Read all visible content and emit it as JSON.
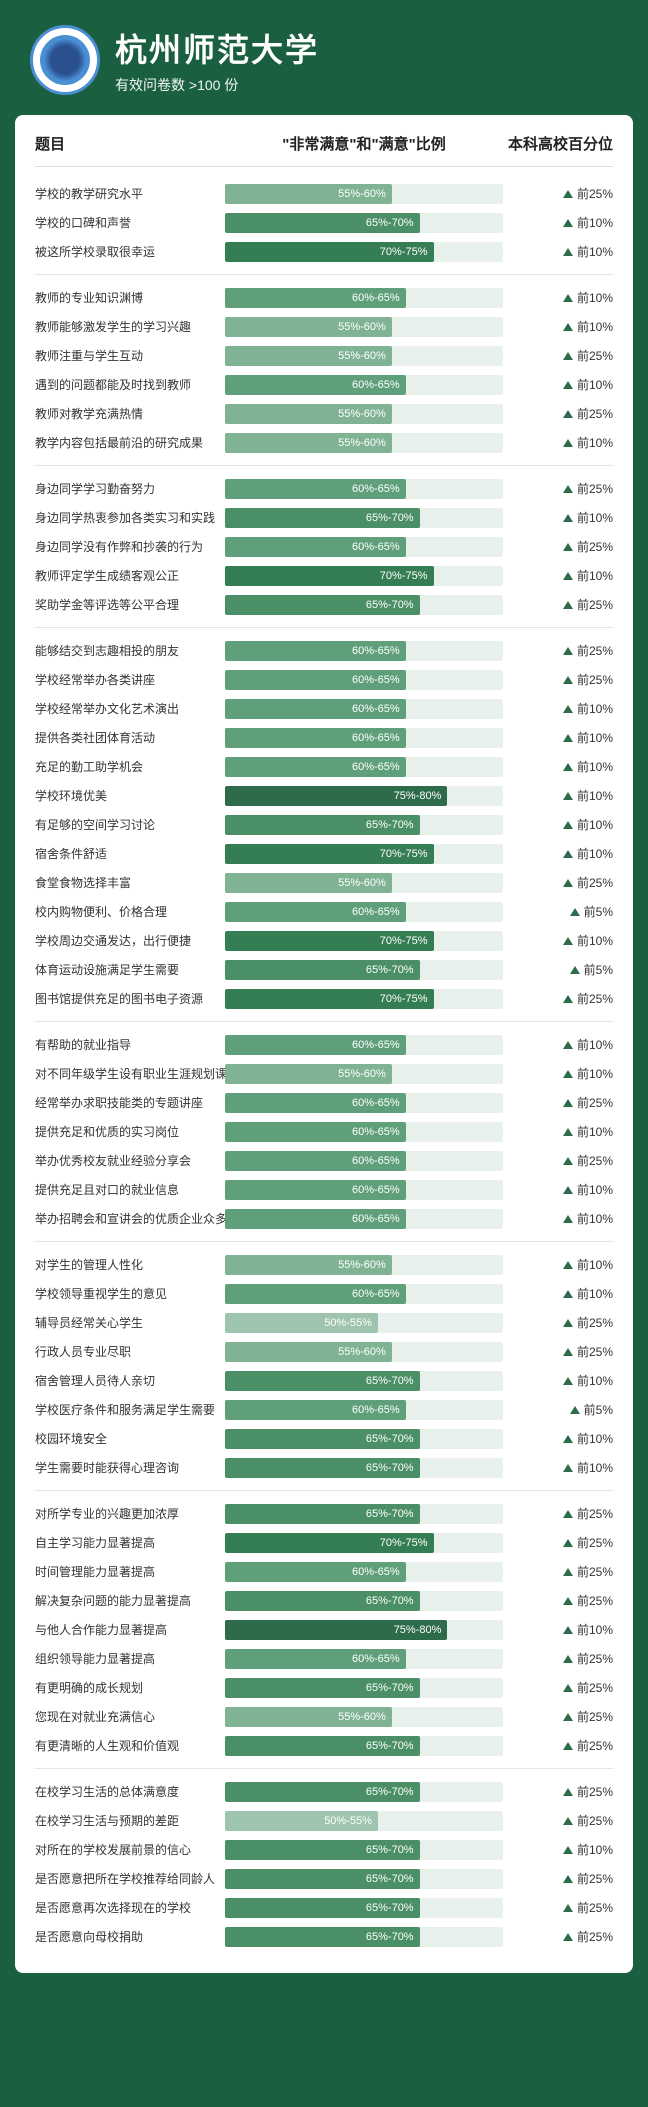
{
  "header": {
    "university": "杭州师范大学",
    "subtitle": "有效问卷数 >100 份"
  },
  "columns": {
    "question": "题目",
    "ratio": "\"非常满意\"和\"满意\"比例",
    "percentile": "本科高校百分位"
  },
  "style": {
    "page_bg": "#1a5f3f",
    "card_bg": "#ffffff",
    "bar_track": "#e8f0eb",
    "triangle": "#2d6b4a",
    "bar_colors": {
      "50-55": "#9fc4ae",
      "55-60": "#7fb394",
      "60-65": "#5fa07a",
      "65-70": "#4a8f65",
      "70-75": "#357d52",
      "75-80": "#2d6b4a"
    }
  },
  "groups": [
    [
      {
        "q": "学校的教学研究水平",
        "range": "55%-60%",
        "lo": 55,
        "hi": 60,
        "pct": "前25%"
      },
      {
        "q": "学校的口碑和声誉",
        "range": "65%-70%",
        "lo": 65,
        "hi": 70,
        "pct": "前10%"
      },
      {
        "q": "被这所学校录取很幸运",
        "range": "70%-75%",
        "lo": 70,
        "hi": 75,
        "pct": "前10%"
      }
    ],
    [
      {
        "q": "教师的专业知识渊博",
        "range": "60%-65%",
        "lo": 60,
        "hi": 65,
        "pct": "前10%"
      },
      {
        "q": "教师能够激发学生的学习兴趣",
        "range": "55%-60%",
        "lo": 55,
        "hi": 60,
        "pct": "前10%"
      },
      {
        "q": "教师注重与学生互动",
        "range": "55%-60%",
        "lo": 55,
        "hi": 60,
        "pct": "前25%"
      },
      {
        "q": "遇到的问题都能及时找到教师",
        "range": "60%-65%",
        "lo": 60,
        "hi": 65,
        "pct": "前10%"
      },
      {
        "q": "教师对教学充满热情",
        "range": "55%-60%",
        "lo": 55,
        "hi": 60,
        "pct": "前25%"
      },
      {
        "q": "教学内容包括最前沿的研究成果",
        "range": "55%-60%",
        "lo": 55,
        "hi": 60,
        "pct": "前10%"
      }
    ],
    [
      {
        "q": "身边同学学习勤奋努力",
        "range": "60%-65%",
        "lo": 60,
        "hi": 65,
        "pct": "前25%"
      },
      {
        "q": "身边同学热衷参加各类实习和实践",
        "range": "65%-70%",
        "lo": 65,
        "hi": 70,
        "pct": "前10%"
      },
      {
        "q": "身边同学没有作弊和抄袭的行为",
        "range": "60%-65%",
        "lo": 60,
        "hi": 65,
        "pct": "前25%"
      },
      {
        "q": "教师评定学生成绩客观公正",
        "range": "70%-75%",
        "lo": 70,
        "hi": 75,
        "pct": "前10%"
      },
      {
        "q": "奖助学金等评选等公平合理",
        "range": "65%-70%",
        "lo": 65,
        "hi": 70,
        "pct": "前25%"
      }
    ],
    [
      {
        "q": "能够结交到志趣相投的朋友",
        "range": "60%-65%",
        "lo": 60,
        "hi": 65,
        "pct": "前25%"
      },
      {
        "q": "学校经常举办各类讲座",
        "range": "60%-65%",
        "lo": 60,
        "hi": 65,
        "pct": "前25%"
      },
      {
        "q": "学校经常举办文化艺术演出",
        "range": "60%-65%",
        "lo": 60,
        "hi": 65,
        "pct": "前10%"
      },
      {
        "q": "提供各类社团体育活动",
        "range": "60%-65%",
        "lo": 60,
        "hi": 65,
        "pct": "前10%"
      },
      {
        "q": "充足的勤工助学机会",
        "range": "60%-65%",
        "lo": 60,
        "hi": 65,
        "pct": "前10%"
      },
      {
        "q": "学校环境优美",
        "range": "75%-80%",
        "lo": 75,
        "hi": 80,
        "pct": "前10%"
      },
      {
        "q": "有足够的空间学习讨论",
        "range": "65%-70%",
        "lo": 65,
        "hi": 70,
        "pct": "前10%"
      },
      {
        "q": "宿舍条件舒适",
        "range": "70%-75%",
        "lo": 70,
        "hi": 75,
        "pct": "前10%"
      },
      {
        "q": "食堂食物选择丰富",
        "range": "55%-60%",
        "lo": 55,
        "hi": 60,
        "pct": "前25%"
      },
      {
        "q": "校内购物便利、价格合理",
        "range": "60%-65%",
        "lo": 60,
        "hi": 65,
        "pct": "前5%"
      },
      {
        "q": "学校周边交通发达，出行便捷",
        "range": "70%-75%",
        "lo": 70,
        "hi": 75,
        "pct": "前10%"
      },
      {
        "q": "体育运动设施满足学生需要",
        "range": "65%-70%",
        "lo": 65,
        "hi": 70,
        "pct": "前5%"
      },
      {
        "q": "图书馆提供充足的图书电子资源",
        "range": "70%-75%",
        "lo": 70,
        "hi": 75,
        "pct": "前25%"
      }
    ],
    [
      {
        "q": "有帮助的就业指导",
        "range": "60%-65%",
        "lo": 60,
        "hi": 65,
        "pct": "前10%"
      },
      {
        "q": "对不同年级学生设有职业生涯规划课",
        "range": "55%-60%",
        "lo": 55,
        "hi": 60,
        "pct": "前10%"
      },
      {
        "q": "经常举办求职技能类的专题讲座",
        "range": "60%-65%",
        "lo": 60,
        "hi": 65,
        "pct": "前25%"
      },
      {
        "q": "提供充足和优质的实习岗位",
        "range": "60%-65%",
        "lo": 60,
        "hi": 65,
        "pct": "前10%"
      },
      {
        "q": "举办优秀校友就业经验分享会",
        "range": "60%-65%",
        "lo": 60,
        "hi": 65,
        "pct": "前25%"
      },
      {
        "q": "提供充足且对口的就业信息",
        "range": "60%-65%",
        "lo": 60,
        "hi": 65,
        "pct": "前10%"
      },
      {
        "q": "举办招聘会和宣讲会的优质企业众多",
        "range": "60%-65%",
        "lo": 60,
        "hi": 65,
        "pct": "前10%"
      }
    ],
    [
      {
        "q": "对学生的管理人性化",
        "range": "55%-60%",
        "lo": 55,
        "hi": 60,
        "pct": "前10%"
      },
      {
        "q": "学校领导重视学生的意见",
        "range": "60%-65%",
        "lo": 60,
        "hi": 65,
        "pct": "前10%"
      },
      {
        "q": "辅导员经常关心学生",
        "range": "50%-55%",
        "lo": 50,
        "hi": 55,
        "pct": "前25%"
      },
      {
        "q": "行政人员专业尽职",
        "range": "55%-60%",
        "lo": 55,
        "hi": 60,
        "pct": "前25%"
      },
      {
        "q": "宿舍管理人员待人亲切",
        "range": "65%-70%",
        "lo": 65,
        "hi": 70,
        "pct": "前10%"
      },
      {
        "q": "学校医疗条件和服务满足学生需要",
        "range": "60%-65%",
        "lo": 60,
        "hi": 65,
        "pct": "前5%"
      },
      {
        "q": "校园环境安全",
        "range": "65%-70%",
        "lo": 65,
        "hi": 70,
        "pct": "前10%"
      },
      {
        "q": "学生需要时能获得心理咨询",
        "range": "65%-70%",
        "lo": 65,
        "hi": 70,
        "pct": "前10%"
      }
    ],
    [
      {
        "q": "对所学专业的兴趣更加浓厚",
        "range": "65%-70%",
        "lo": 65,
        "hi": 70,
        "pct": "前25%"
      },
      {
        "q": "自主学习能力显著提高",
        "range": "70%-75%",
        "lo": 70,
        "hi": 75,
        "pct": "前25%"
      },
      {
        "q": "时间管理能力显著提高",
        "range": "60%-65%",
        "lo": 60,
        "hi": 65,
        "pct": "前25%"
      },
      {
        "q": "解决复杂问题的能力显著提高",
        "range": "65%-70%",
        "lo": 65,
        "hi": 70,
        "pct": "前25%"
      },
      {
        "q": "与他人合作能力显著提高",
        "range": "75%-80%",
        "lo": 75,
        "hi": 80,
        "pct": "前10%"
      },
      {
        "q": "组织领导能力显著提高",
        "range": "60%-65%",
        "lo": 60,
        "hi": 65,
        "pct": "前25%"
      },
      {
        "q": "有更明确的成长规划",
        "range": "65%-70%",
        "lo": 65,
        "hi": 70,
        "pct": "前25%"
      },
      {
        "q": "您现在对就业充满信心",
        "range": "55%-60%",
        "lo": 55,
        "hi": 60,
        "pct": "前25%"
      },
      {
        "q": "有更清晰的人生观和价值观",
        "range": "65%-70%",
        "lo": 65,
        "hi": 70,
        "pct": "前25%"
      }
    ],
    [
      {
        "q": "在校学习生活的总体满意度",
        "range": "65%-70%",
        "lo": 65,
        "hi": 70,
        "pct": "前25%"
      },
      {
        "q": "在校学习生活与预期的差距",
        "range": "50%-55%",
        "lo": 50,
        "hi": 55,
        "pct": "前25%"
      },
      {
        "q": "对所在的学校发展前景的信心",
        "range": "65%-70%",
        "lo": 65,
        "hi": 70,
        "pct": "前10%"
      },
      {
        "q": "是否愿意把所在学校推荐给同龄人",
        "range": "65%-70%",
        "lo": 65,
        "hi": 70,
        "pct": "前25%"
      },
      {
        "q": "是否愿意再次选择现在的学校",
        "range": "65%-70%",
        "lo": 65,
        "hi": 70,
        "pct": "前25%"
      },
      {
        "q": "是否愿意向母校捐助",
        "range": "65%-70%",
        "lo": 65,
        "hi": 70,
        "pct": "前25%"
      }
    ]
  ]
}
